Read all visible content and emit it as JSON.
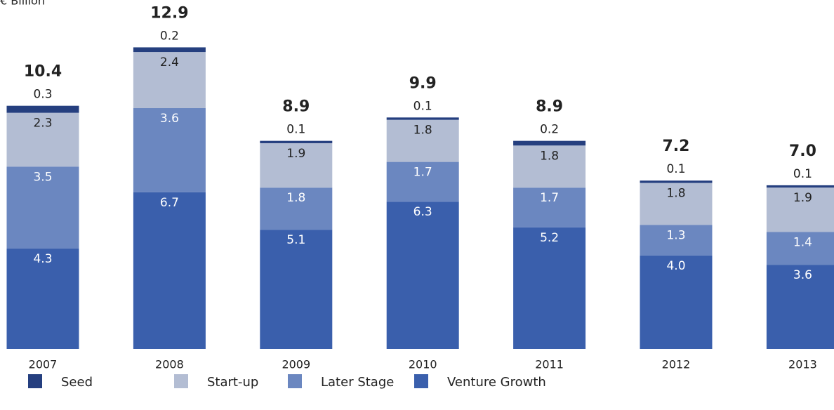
{
  "chart_data": {
    "type": "stacked_bar",
    "title": "€ Billion",
    "categories": [
      "2007",
      "2008",
      "2009",
      "2010",
      "2011",
      "2012",
      "2013"
    ],
    "series": [
      {
        "name": "Venture Growth",
        "color": "#3a5fac",
        "values": [
          4.3,
          6.7,
          5.1,
          6.3,
          5.2,
          4.0,
          3.6
        ],
        "value_labels": [
          "4.3",
          "6.7",
          "5.1",
          "6.3",
          "5.2",
          "4.0",
          "3.6"
        ]
      },
      {
        "name": "Later Stage",
        "color": "#6b87c0",
        "values": [
          3.5,
          3.6,
          1.8,
          1.7,
          1.7,
          1.3,
          1.4
        ],
        "value_labels": [
          "3.5",
          "3.6",
          "1.8",
          "1.7",
          "1.7",
          "1.3",
          "1.4"
        ]
      },
      {
        "name": "Start-up",
        "color": "#b3bdd3",
        "values": [
          2.3,
          2.4,
          1.9,
          1.8,
          1.8,
          1.8,
          1.9
        ],
        "value_labels": [
          "2.3",
          "2.4",
          "1.9",
          "1.8",
          "1.8",
          "1.8",
          "1.9"
        ]
      },
      {
        "name": "Seed",
        "color": "#253f7f",
        "values": [
          0.3,
          0.2,
          0.1,
          0.1,
          0.2,
          0.1,
          0.1
        ],
        "value_labels": [
          "0.3",
          "0.2",
          "0.1",
          "0.1",
          "0.2",
          "0.1",
          "0.1"
        ]
      }
    ],
    "totals": [
      10.4,
      12.9,
      8.9,
      9.9,
      8.9,
      7.2,
      7.0
    ],
    "total_labels": [
      "10.4",
      "12.9",
      "8.9",
      "9.9",
      "8.9",
      "7.2",
      "7.0"
    ]
  }
}
